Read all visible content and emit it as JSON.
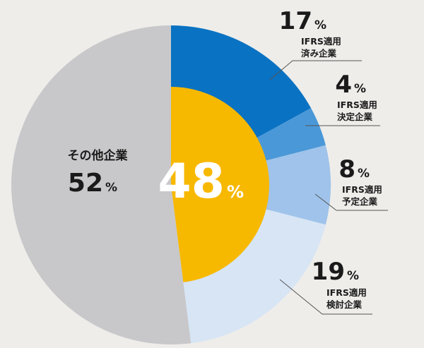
{
  "chart_data": {
    "type": "pie",
    "slices": [
      {
        "label": "その他企業",
        "value": 52,
        "color": "#c8c8ca"
      },
      {
        "label": "IFRS適用済み企業",
        "label_lines": [
          "IFRS適用",
          "済み企業"
        ],
        "value": 17,
        "color": "#0a72c2"
      },
      {
        "label": "IFRS適用決定企業",
        "label_lines": [
          "IFRS適用",
          "決定企業"
        ],
        "value": 4,
        "color": "#4a98d8"
      },
      {
        "label": "IFRS適用予定企業",
        "label_lines": [
          "IFRS適用",
          "予定企業"
        ],
        "value": 8,
        "color": "#9fc3ea"
      },
      {
        "label": "IFRS適用検討企業",
        "label_lines": [
          "IFRS適用",
          "検討企業"
        ],
        "value": 19,
        "color": "#d7e5f5"
      }
    ],
    "inner_ring": {
      "value": 48,
      "color": "#f7b800"
    },
    "unit": "%"
  }
}
